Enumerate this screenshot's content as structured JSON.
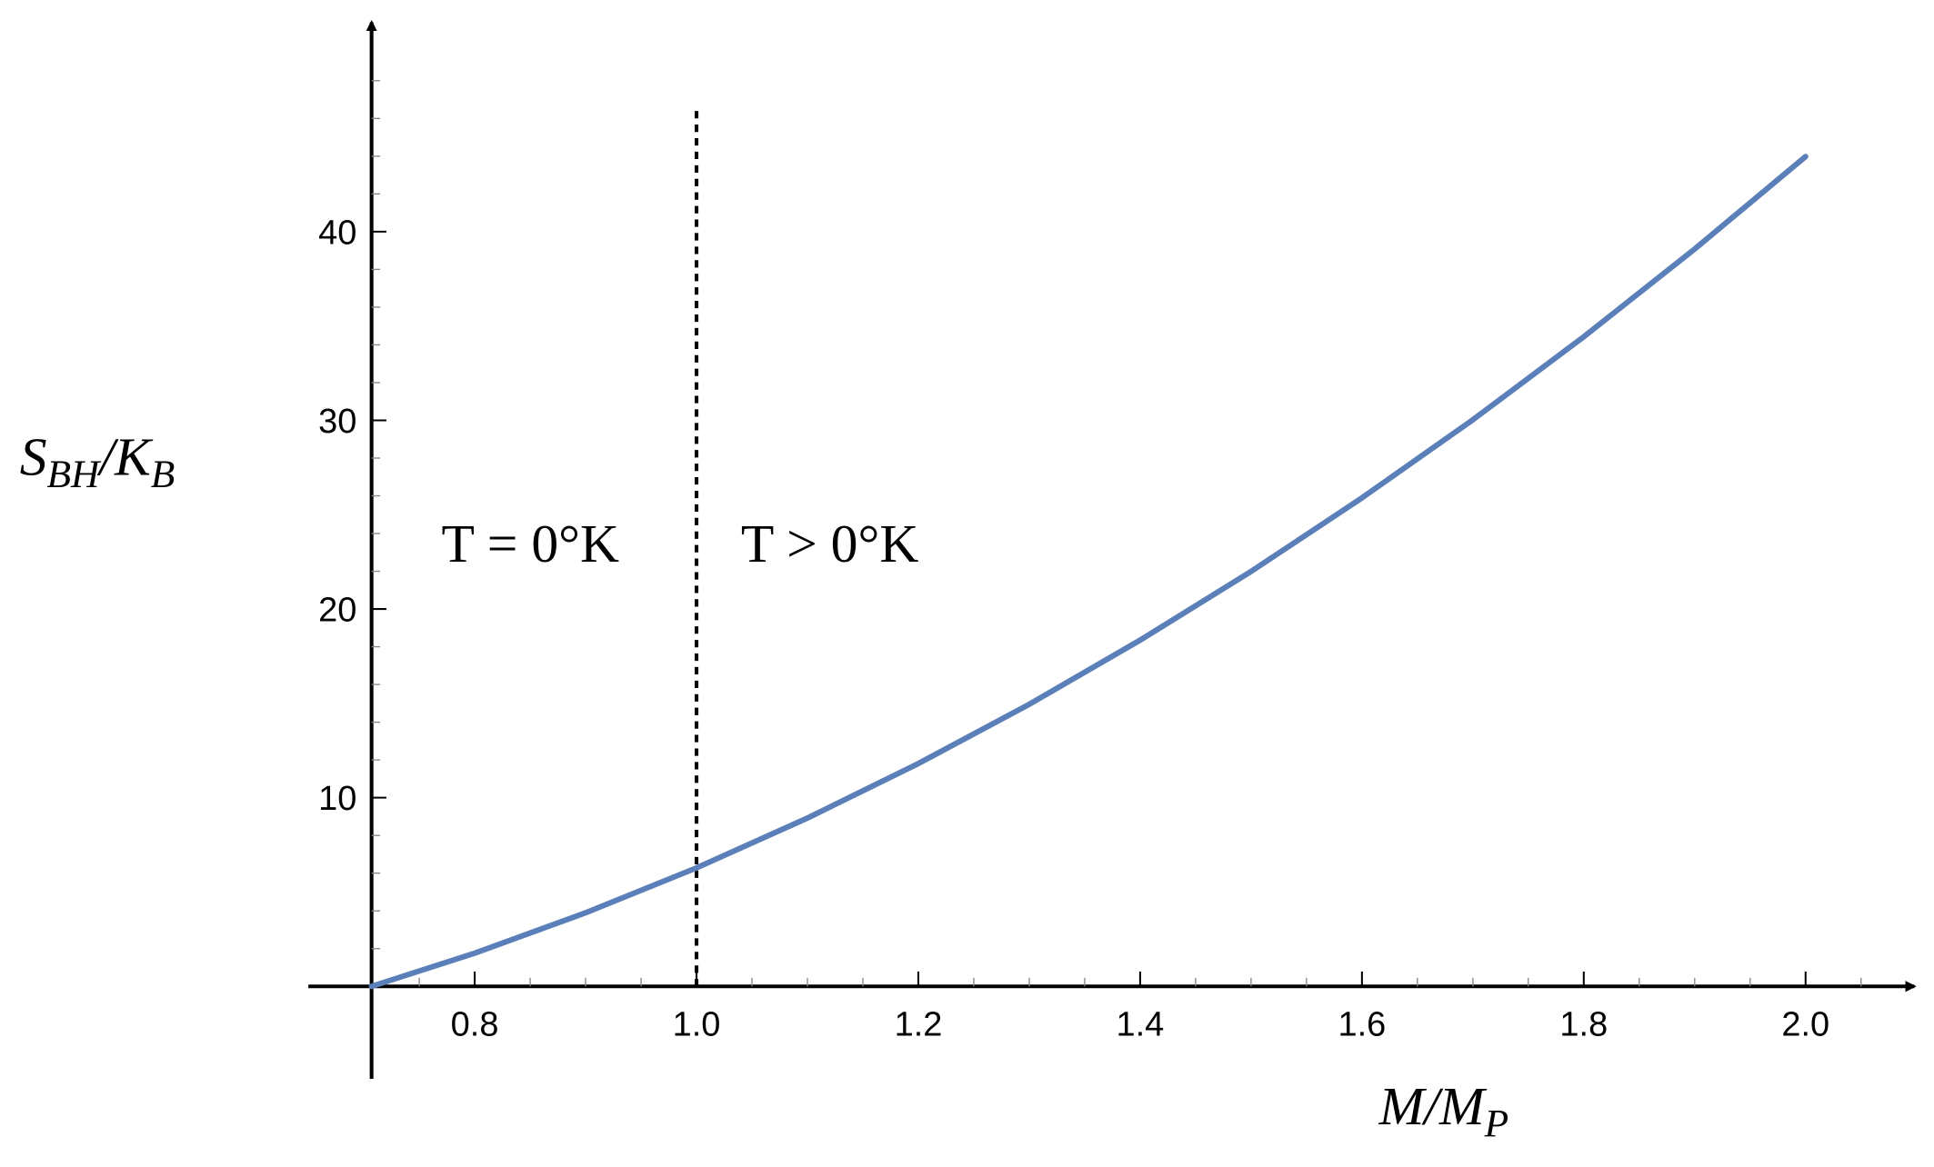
{
  "chart_data": {
    "type": "line",
    "x": [
      0.707,
      0.8,
      0.9,
      1.0,
      1.1,
      1.2,
      1.3,
      1.4,
      1.5,
      1.6,
      1.7,
      1.8,
      1.9,
      2.0
    ],
    "series": [
      {
        "color": "#5b7fb8",
        "values": [
          0,
          1.76,
          3.9,
          6.28,
          8.92,
          11.81,
          14.95,
          18.35,
          21.99,
          25.89,
          30.03,
          34.43,
          39.08,
          43.98
        ]
      }
    ],
    "xlim": [
      0.65,
      2.098
    ],
    "ylim": [
      -4.9,
      51.1
    ],
    "axis_origin": [
      0.707,
      0
    ],
    "xticks": [
      {
        "value": 0.8,
        "label": "0.8"
      },
      {
        "value": 1.0,
        "label": "1.0"
      },
      {
        "value": 1.2,
        "label": "1.2"
      },
      {
        "value": 1.4,
        "label": "1.4"
      },
      {
        "value": 1.6,
        "label": "1.6"
      },
      {
        "value": 1.8,
        "label": "1.8"
      },
      {
        "value": 2.0,
        "label": "2.0"
      }
    ],
    "yticks": [
      10,
      20,
      30,
      40
    ],
    "minor_xticks": [
      0.75,
      0.85,
      0.9,
      0.95,
      1.05,
      1.1,
      1.15,
      1.25,
      1.3,
      1.35,
      1.45,
      1.5,
      1.55,
      1.65,
      1.7,
      1.75,
      1.85,
      1.9,
      1.95,
      2.05
    ],
    "minor_yticks": [
      2,
      4,
      6,
      8,
      12,
      14,
      16,
      18,
      22,
      24,
      26,
      28,
      32,
      34,
      36,
      38,
      42,
      44,
      46,
      48
    ],
    "vline": {
      "x": 1.0,
      "ymax": 46.4
    },
    "xlabel": [
      {
        "text": "M/M"
      },
      {
        "sub": "P"
      }
    ],
    "ylabel": [
      {
        "text": "S"
      },
      {
        "sub": "BH"
      },
      {
        "text": "/K"
      },
      {
        "sub": "B"
      }
    ],
    "annotations": [
      {
        "text": "T = 0°K",
        "x": 0.77,
        "y": 22.5
      },
      {
        "text": "T > 0°K",
        "x": 1.04,
        "y": 22.5
      }
    ]
  }
}
